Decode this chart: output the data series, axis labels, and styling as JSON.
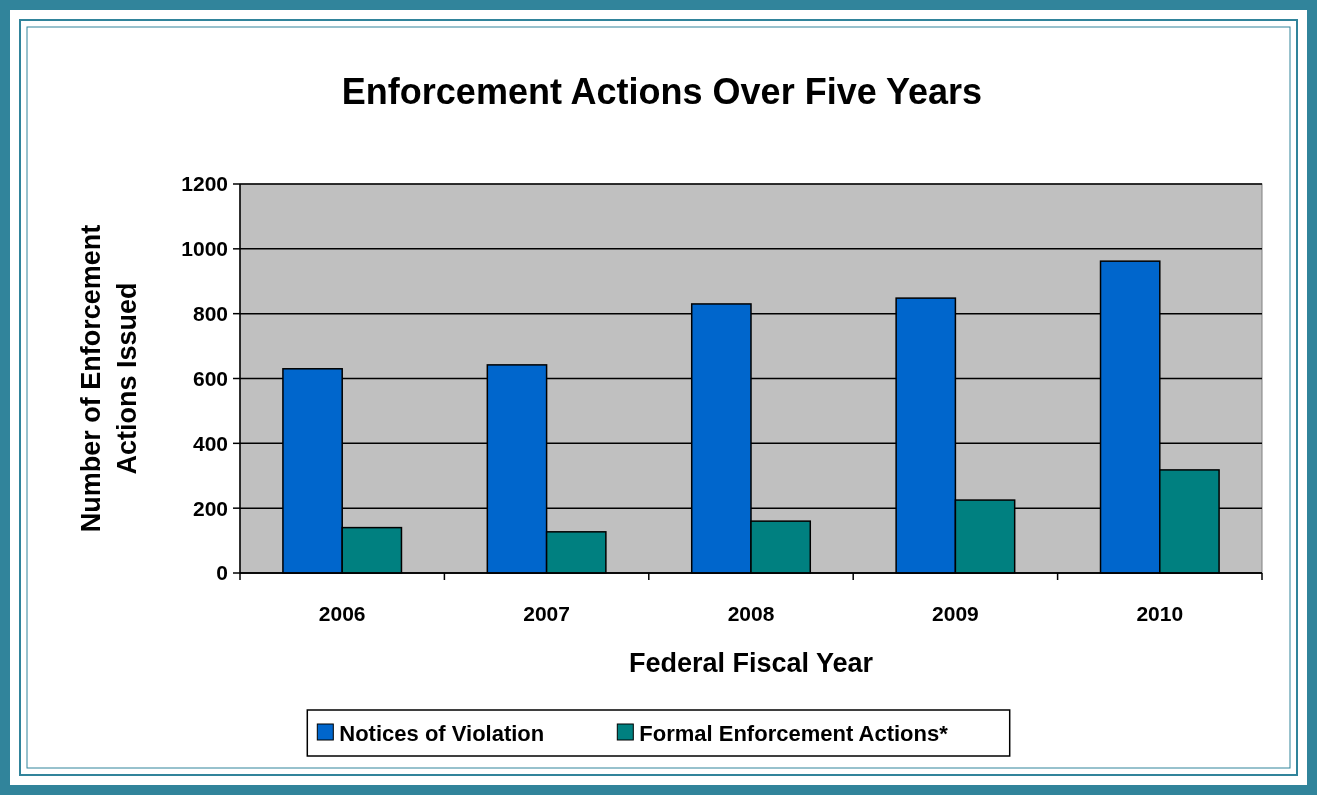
{
  "chart_data": {
    "type": "bar",
    "title": "Enforcement Actions Over Five Years",
    "xlabel": "Federal Fiscal Year",
    "ylabel": "Number of Enforcement Actions Issued",
    "categories": [
      "2006",
      "2007",
      "2008",
      "2009",
      "2010"
    ],
    "series": [
      {
        "name": "Notices of Violation",
        "color": "#0066cc",
        "values": [
          630,
          642,
          830,
          848,
          962
        ]
      },
      {
        "name": "Formal Enforcement Actions*",
        "color": "#008080",
        "values": [
          140,
          127,
          160,
          225,
          318
        ]
      }
    ],
    "ylim": [
      0,
      1200
    ],
    "yticks": [
      0,
      200,
      400,
      600,
      800,
      1000,
      1200
    ],
    "grid": "y",
    "legend": "bottom"
  }
}
